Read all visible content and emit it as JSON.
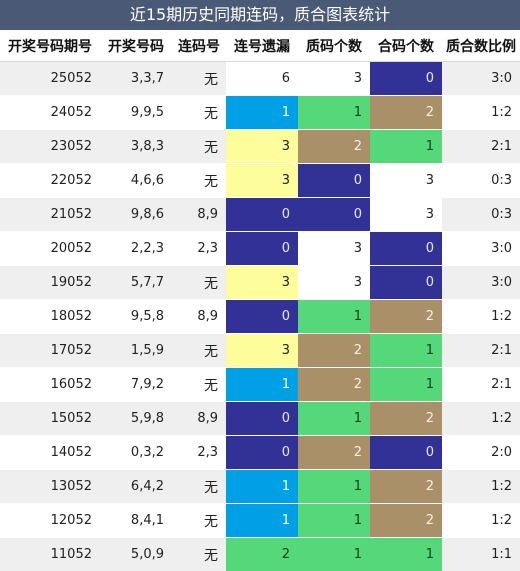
{
  "title": "近15期历史同期连码，质合图表统计",
  "headers": [
    "开奖号码期号",
    "开奖号码",
    "连码号",
    "连号遗漏",
    "质码个数",
    "合码个数",
    "质合数比例"
  ],
  "colors": {
    "blue": "#323296",
    "sky": "#00a0e6",
    "green": "#54d879",
    "tan": "#a99068",
    "yellow": "#fdfd9b",
    "white": "#ffffff",
    "title_bar": "#4a5a76"
  },
  "rows": [
    {
      "period": "25052",
      "numbers": "3,3,7",
      "consec": "无",
      "miss": {
        "v": "6",
        "c": "white"
      },
      "prime": {
        "v": "3",
        "c": "white"
      },
      "composite": {
        "v": "0",
        "c": "blue"
      },
      "ratio": "3:0"
    },
    {
      "period": "24052",
      "numbers": "9,9,5",
      "consec": "无",
      "miss": {
        "v": "1",
        "c": "sky"
      },
      "prime": {
        "v": "1",
        "c": "green"
      },
      "composite": {
        "v": "2",
        "c": "tan"
      },
      "ratio": "1:2"
    },
    {
      "period": "23052",
      "numbers": "3,8,3",
      "consec": "无",
      "miss": {
        "v": "3",
        "c": "yellow"
      },
      "prime": {
        "v": "2",
        "c": "tan"
      },
      "composite": {
        "v": "1",
        "c": "green"
      },
      "ratio": "2:1"
    },
    {
      "period": "22052",
      "numbers": "4,6,6",
      "consec": "无",
      "miss": {
        "v": "3",
        "c": "yellow"
      },
      "prime": {
        "v": "0",
        "c": "blue"
      },
      "composite": {
        "v": "3",
        "c": "white"
      },
      "ratio": "0:3"
    },
    {
      "period": "21052",
      "numbers": "9,8,6",
      "consec": "8,9",
      "miss": {
        "v": "0",
        "c": "blue"
      },
      "prime": {
        "v": "0",
        "c": "blue"
      },
      "composite": {
        "v": "3",
        "c": "white"
      },
      "ratio": "0:3"
    },
    {
      "period": "20052",
      "numbers": "2,2,3",
      "consec": "2,3",
      "miss": {
        "v": "0",
        "c": "blue"
      },
      "prime": {
        "v": "3",
        "c": "white"
      },
      "composite": {
        "v": "0",
        "c": "blue"
      },
      "ratio": "3:0"
    },
    {
      "period": "19052",
      "numbers": "5,7,7",
      "consec": "无",
      "miss": {
        "v": "3",
        "c": "yellow"
      },
      "prime": {
        "v": "3",
        "c": "white"
      },
      "composite": {
        "v": "0",
        "c": "blue"
      },
      "ratio": "3:0"
    },
    {
      "period": "18052",
      "numbers": "9,5,8",
      "consec": "8,9",
      "miss": {
        "v": "0",
        "c": "blue"
      },
      "prime": {
        "v": "1",
        "c": "green"
      },
      "composite": {
        "v": "2",
        "c": "tan"
      },
      "ratio": "1:2"
    },
    {
      "period": "17052",
      "numbers": "1,5,9",
      "consec": "无",
      "miss": {
        "v": "3",
        "c": "yellow"
      },
      "prime": {
        "v": "2",
        "c": "tan"
      },
      "composite": {
        "v": "1",
        "c": "green"
      },
      "ratio": "2:1"
    },
    {
      "period": "16052",
      "numbers": "7,9,2",
      "consec": "无",
      "miss": {
        "v": "1",
        "c": "sky"
      },
      "prime": {
        "v": "2",
        "c": "tan"
      },
      "composite": {
        "v": "1",
        "c": "green"
      },
      "ratio": "2:1"
    },
    {
      "period": "15052",
      "numbers": "5,9,8",
      "consec": "8,9",
      "miss": {
        "v": "0",
        "c": "blue"
      },
      "prime": {
        "v": "1",
        "c": "green"
      },
      "composite": {
        "v": "2",
        "c": "tan"
      },
      "ratio": "1:2"
    },
    {
      "period": "14052",
      "numbers": "0,3,2",
      "consec": "2,3",
      "miss": {
        "v": "0",
        "c": "blue"
      },
      "prime": {
        "v": "2",
        "c": "tan"
      },
      "composite": {
        "v": "0",
        "c": "blue"
      },
      "ratio": "2:0"
    },
    {
      "period": "13052",
      "numbers": "6,4,2",
      "consec": "无",
      "miss": {
        "v": "1",
        "c": "sky"
      },
      "prime": {
        "v": "1",
        "c": "green"
      },
      "composite": {
        "v": "2",
        "c": "tan"
      },
      "ratio": "1:2"
    },
    {
      "period": "12052",
      "numbers": "8,4,1",
      "consec": "无",
      "miss": {
        "v": "1",
        "c": "sky"
      },
      "prime": {
        "v": "1",
        "c": "green"
      },
      "composite": {
        "v": "2",
        "c": "tan"
      },
      "ratio": "1:2"
    },
    {
      "period": "11052",
      "numbers": "5,0,9",
      "consec": "无",
      "miss": {
        "v": "2",
        "c": "green"
      },
      "prime": {
        "v": "1",
        "c": "green"
      },
      "composite": {
        "v": "1",
        "c": "green"
      },
      "ratio": "1:1"
    }
  ]
}
